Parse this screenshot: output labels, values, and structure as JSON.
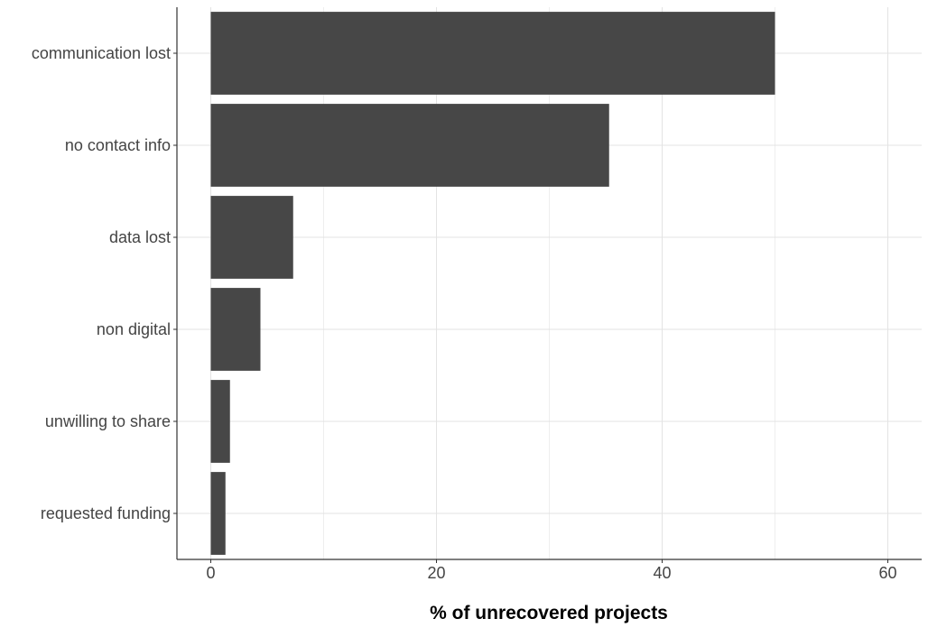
{
  "chart_data": {
    "type": "bar",
    "orientation": "horizontal",
    "title": "",
    "xlabel": "% of unrecovered projects",
    "ylabel": "",
    "categories": [
      "communication lost",
      "no contact info",
      "data lost",
      "non digital",
      "unwilling to share",
      "requested funding"
    ],
    "values": [
      50.0,
      35.3,
      7.3,
      4.4,
      1.7,
      1.3
    ],
    "xlim": [
      -3,
      63
    ],
    "xticks": [
      0,
      20,
      40,
      60
    ],
    "grid": true,
    "legend": "none",
    "colors": {
      "bar": "#474747",
      "grid": "#e3e3e3",
      "axis": "#333333"
    }
  }
}
